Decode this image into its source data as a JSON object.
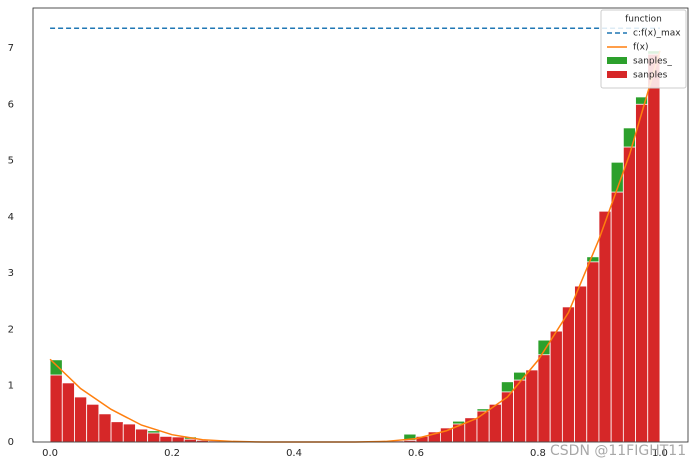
{
  "chart_data": {
    "type": "histogram",
    "bins": [
      0,
      0.02,
      0.04,
      0.06,
      0.08,
      0.1,
      0.12,
      0.14,
      0.16,
      0.18,
      0.2,
      0.22,
      0.24,
      0.26,
      0.28,
      0.3,
      0.32,
      0.34,
      0.36,
      0.38,
      0.4,
      0.42,
      0.44,
      0.46,
      0.48,
      0.5,
      0.52,
      0.54,
      0.56,
      0.58,
      0.6,
      0.62,
      0.64,
      0.66,
      0.68,
      0.7,
      0.72,
      0.74,
      0.76,
      0.78,
      0.8,
      0.82,
      0.84,
      0.86,
      0.88,
      0.9,
      0.92,
      0.94,
      0.96,
      0.98,
      1.0
    ],
    "series": [
      {
        "name": "sanples_",
        "color": "#2ca02c",
        "values": [
          1.46,
          1.05,
          0.8,
          0.67,
          0.5,
          0.36,
          0.32,
          0.23,
          0.2,
          0.1,
          0.1,
          0.09,
          0.03,
          0.02,
          0.01,
          0.01,
          0,
          0,
          0,
          0,
          0,
          0,
          0,
          0,
          0,
          0,
          0.01,
          0.01,
          0.02,
          0.14,
          0.1,
          0.18,
          0.25,
          0.37,
          0.43,
          0.59,
          0.67,
          1.07,
          1.24,
          1.28,
          1.81,
          1.97,
          2.4,
          2.77,
          3.29,
          4.1,
          4.97,
          5.58,
          6.13,
          6.95
        ]
      },
      {
        "name": "sanples",
        "color": "#d62728",
        "values": [
          1.19,
          1.05,
          0.8,
          0.67,
          0.5,
          0.36,
          0.32,
          0.23,
          0.16,
          0.1,
          0.09,
          0.05,
          0.03,
          0.02,
          0.01,
          0.01,
          0,
          0,
          0,
          0,
          0,
          0,
          0,
          0,
          0,
          0,
          0.01,
          0.01,
          0.02,
          0.03,
          0.1,
          0.18,
          0.25,
          0.32,
          0.43,
          0.55,
          0.67,
          0.89,
          1.1,
          1.28,
          1.55,
          1.97,
          2.4,
          2.77,
          3.2,
          4.1,
          4.44,
          5.24,
          6.0,
          6.89
        ]
      }
    ],
    "lines": [
      {
        "name": "f(x)",
        "color": "#ff7f0e",
        "x": [
          0,
          0.05,
          0.1,
          0.15,
          0.2,
          0.25,
          0.3,
          0.35,
          0.4,
          0.45,
          0.5,
          0.55,
          0.6,
          0.65,
          0.7,
          0.75,
          0.8,
          0.85,
          0.9,
          0.95,
          1.0
        ],
        "values": [
          1.47,
          0.95,
          0.58,
          0.3,
          0.13,
          0.04,
          0.01,
          0,
          0,
          0,
          0,
          0.01,
          0.06,
          0.2,
          0.42,
          0.8,
          1.45,
          2.3,
          3.6,
          5.1,
          6.95
        ]
      }
    ],
    "hlines": [
      {
        "name": "c:f(x)_max",
        "color": "#1f77b4",
        "value": 7.35,
        "xmin": 0,
        "xmax": 1.0
      }
    ],
    "legend_title": "function",
    "legend": "upper right",
    "xlim": [
      -0.028,
      1.046
    ],
    "ylim": [
      0,
      7.71
    ],
    "xticks": [
      {
        "value": 0,
        "label": "0.0"
      },
      {
        "value": 0.2,
        "label": "0.2"
      },
      {
        "value": 0.4,
        "label": "0.4"
      },
      {
        "value": 0.6,
        "label": "0.6"
      },
      {
        "value": 0.8,
        "label": "0.8"
      },
      {
        "value": 1.0,
        "label": "1.0"
      }
    ],
    "yticks": [
      0,
      1,
      2,
      3,
      4,
      5,
      6,
      7
    ],
    "watermark": "CSDN @11FIGHT11"
  }
}
